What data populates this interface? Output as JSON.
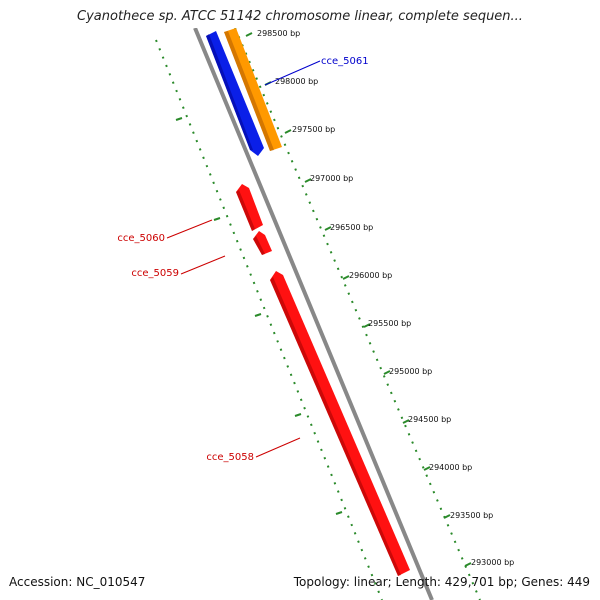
{
  "title": "Cyanothece sp. ATCC 51142 chromosome linear, complete sequen...",
  "footer": {
    "accession": "Accession: NC_010547",
    "summary": "Topology: linear; Length: 429,701 bp; Genes: 449"
  },
  "ruler_ticks": [
    "298500 bp",
    "298000 bp",
    "297500 bp",
    "297000 bp",
    "296500 bp",
    "296000 bp",
    "295500 bp",
    "295000 bp",
    "294500 bp",
    "294000 bp",
    "293500 bp",
    "293000 bp"
  ],
  "genes": [
    {
      "label": "cce_5061",
      "color": "#0000cc",
      "fill": "#0a1fe8",
      "strand": "plus"
    },
    {
      "label": "cce_5060",
      "color": "#cc0000",
      "fill": "#ff1111",
      "strand": "minus"
    },
    {
      "label": "cce_5059",
      "color": "#cc0000",
      "fill": "#ff1111",
      "strand": "minus"
    },
    {
      "label": "cce_5058",
      "color": "#cc0000",
      "fill": "#ff1111",
      "strand": "minus"
    }
  ],
  "colors": {
    "backbone": "#888888",
    "tick_dots": "#2a8a2a",
    "gene_orange": "#ff9900",
    "gene_teal": "#33ddaa"
  }
}
